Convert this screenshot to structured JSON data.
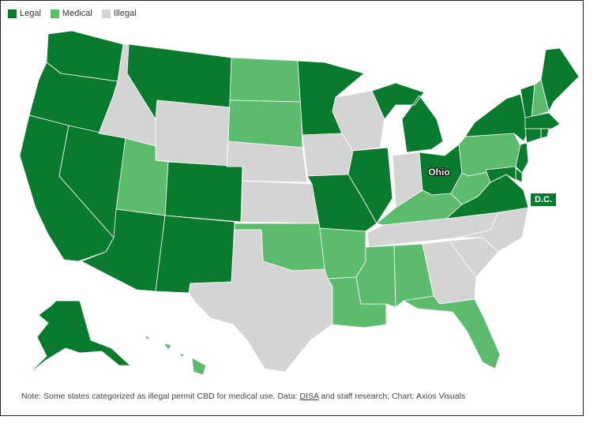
{
  "legend": {
    "items": [
      {
        "label": "Legal",
        "color": "#0a7a2f"
      },
      {
        "label": "Medical",
        "color": "#5dbb6e"
      },
      {
        "label": "Illegal",
        "color": "#d4d4d4"
      }
    ]
  },
  "colors": {
    "legal": "#0a7a2f",
    "medical": "#5dbb6e",
    "illegal": "#d4d4d4"
  },
  "labels": {
    "ohio": "Ohio",
    "dc": "D.C."
  },
  "states": {
    "WA": "legal",
    "OR": "legal",
    "CA": "legal",
    "NV": "legal",
    "ID": "illegal",
    "MT": "legal",
    "WY": "illegal",
    "UT": "medical",
    "AZ": "legal",
    "CO": "legal",
    "NM": "legal",
    "ND": "medical",
    "SD": "medical",
    "NE": "illegal",
    "KS": "illegal",
    "OK": "medical",
    "TX": "illegal",
    "MN": "legal",
    "IA": "illegal",
    "MO": "legal",
    "AR": "medical",
    "LA": "medical",
    "WI": "illegal",
    "IL": "legal",
    "MI": "legal",
    "IN": "illegal",
    "OH": "legal",
    "KY": "medical",
    "TN": "illegal",
    "MS": "medical",
    "AL": "medical",
    "GA": "illegal",
    "FL": "medical",
    "SC": "illegal",
    "NC": "illegal",
    "VA": "legal",
    "WV": "medical",
    "PA": "medical",
    "NY": "legal",
    "VT": "legal",
    "NH": "medical",
    "ME": "legal",
    "MA": "legal",
    "CT": "legal",
    "RI": "legal",
    "NJ": "legal",
    "DE": "legal",
    "MD": "legal",
    "AK": "legal",
    "HI": "medical"
  },
  "note": {
    "prefix": "Note: Some states categorized as illegal permit CBD for medical use. Data: ",
    "link": "DISA",
    "suffix": " and staff research; Chart: Axios Visuals"
  }
}
